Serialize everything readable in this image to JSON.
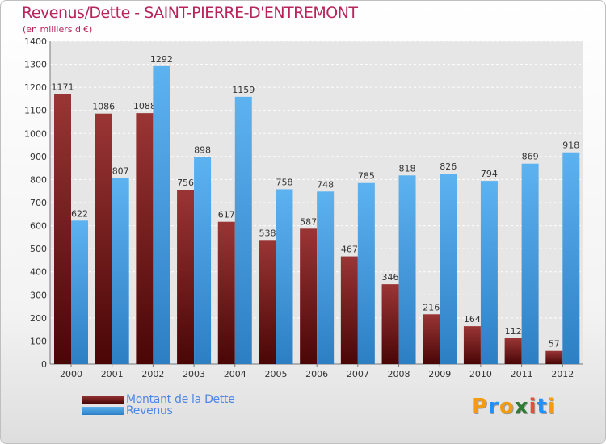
{
  "title": "Revenus/Dette - SAINT-PIERRE-D'ENTREMONT",
  "subtitle": "(en milliers d'€)",
  "brand": {
    "text": "Proxiti",
    "letter_colors": [
      "#f39c12",
      "#1e90ff",
      "#f39c12",
      "#2e7d32",
      "#e74c3c",
      "#1e90ff",
      "#f39c12"
    ]
  },
  "chart_data": {
    "type": "bar",
    "categories": [
      "2000",
      "2001",
      "2002",
      "2003",
      "2004",
      "2005",
      "2006",
      "2007",
      "2008",
      "2009",
      "2010",
      "2011",
      "2012"
    ],
    "series": [
      {
        "name": "Montant de la Dette",
        "color": "#7a1a1a",
        "values": [
          1171,
          1086,
          1088,
          756,
          617,
          538,
          587,
          467,
          346,
          216,
          164,
          112,
          57
        ]
      },
      {
        "name": "Revenus",
        "color": "#4a9fe3",
        "values": [
          622,
          807,
          1292,
          898,
          1159,
          758,
          748,
          785,
          818,
          826,
          794,
          869,
          918
        ]
      }
    ],
    "yticks": [
      0,
      100,
      200,
      300,
      400,
      500,
      600,
      700,
      800,
      900,
      1000,
      1100,
      1200,
      1300,
      1400
    ],
    "ylim": [
      0,
      1400
    ],
    "grid": true,
    "legend_position": "bottom-left"
  }
}
